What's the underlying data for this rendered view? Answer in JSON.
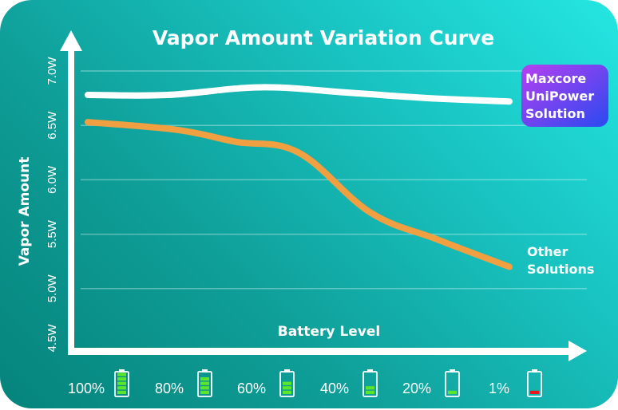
{
  "chart_data": {
    "type": "line",
    "title": "Vapor Amount Variation Curve",
    "xlabel": "Battery Level",
    "ylabel": "Vapor Amount",
    "categories": [
      "100%",
      "80%",
      "60%",
      "40%",
      "20%",
      "1%"
    ],
    "y_ticks": [
      "4.5W",
      "5.0W",
      "5.5W",
      "6.0W",
      "6.5W",
      "7.0W"
    ],
    "y_tick_values": [
      4.5,
      5.0,
      5.5,
      6.0,
      6.5,
      7.0
    ],
    "ylim": [
      4.5,
      7.0
    ],
    "grid": true,
    "series": [
      {
        "name": "Maxcore UniPower Solution",
        "label_lines": [
          "Maxcore",
          "UniPower",
          "Solution"
        ],
        "color": "#ffffff",
        "x": [
          0,
          0.19,
          0.41,
          0.62,
          0.81,
          1.0
        ],
        "values": [
          6.78,
          6.78,
          6.85,
          6.8,
          6.75,
          6.72
        ]
      },
      {
        "name": "Other Solutions",
        "label_lines": [
          "Other",
          "Solutions"
        ],
        "color": "#f0a040",
        "x": [
          0,
          0.21,
          0.35,
          0.5,
          0.67,
          0.83,
          1.0
        ],
        "values": [
          6.53,
          6.46,
          6.35,
          6.25,
          5.7,
          5.45,
          5.2
        ]
      }
    ],
    "battery_levels": [
      {
        "label": "100%",
        "bars": 5,
        "color": "#5ce62a"
      },
      {
        "label": "80%",
        "bars": 4,
        "color": "#5ce62a"
      },
      {
        "label": "60%",
        "bars": 3,
        "color": "#5ce62a"
      },
      {
        "label": "40%",
        "bars": 2,
        "color": "#5ce62a"
      },
      {
        "label": "20%",
        "bars": 1,
        "color": "#5ce62a"
      },
      {
        "label": "1%",
        "bars": 1,
        "color": "#e8181c"
      }
    ],
    "badge_gradient": [
      "#b63ff0",
      "#2a4af0"
    ]
  }
}
